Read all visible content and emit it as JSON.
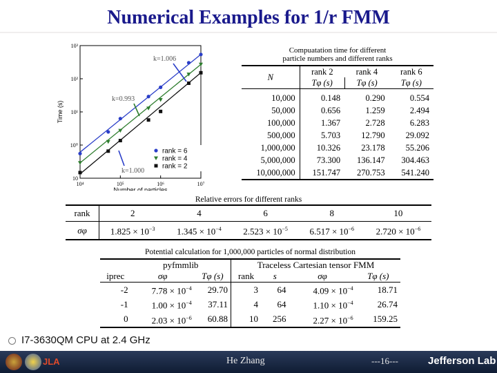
{
  "slide": {
    "title": "Numerical Examples for 1/r FMM",
    "bullet": "I7-3630QM CPU at 2.4 GHz",
    "footer_author": "He Zhang",
    "footer_page": "---16---",
    "footer_logo": "Jefferson Lab",
    "footer_left_logo": "JLA",
    "colors": {
      "title": "#1a1a8c",
      "footer_bg": "#1b2a47",
      "rank6": "#2a3ec8",
      "rank4": "#2e7d2e",
      "rank2": "#111111"
    }
  },
  "chart_data": {
    "type": "scatter",
    "xlabel": "Number of particles",
    "ylabel": "Time (s)",
    "x_scale": "log",
    "y_scale": "log",
    "xlim": [
      10000,
      10000000
    ],
    "ylim": [
      0.1,
      1000
    ],
    "x_ticks": [
      "10⁴",
      "10⁵",
      "10⁶",
      "10⁷"
    ],
    "y_ticks": [
      "10³",
      "10²",
      "10¹",
      "10⁰",
      "10"
    ],
    "legend_position": "bottom-right",
    "annotations": [
      "k=1.006",
      "k=0.993",
      "k=1.000"
    ],
    "series": [
      {
        "name": "rank = 6",
        "color": "#2a3ec8",
        "marker": "circle",
        "x": [
          10000,
          50000,
          100000,
          500000,
          1000000,
          5000000,
          10000000
        ],
        "y": [
          0.554,
          2.494,
          6.283,
          29.092,
          55.206,
          304.463,
          541.24
        ]
      },
      {
        "name": "rank = 4",
        "color": "#2e7d2e",
        "marker": "triangle",
        "x": [
          10000,
          50000,
          100000,
          500000,
          1000000,
          5000000,
          10000000
        ],
        "y": [
          0.29,
          1.259,
          2.728,
          12.79,
          23.178,
          136.147,
          270.753
        ]
      },
      {
        "name": "rank = 2",
        "color": "#111111",
        "marker": "square",
        "x": [
          10000,
          50000,
          100000,
          500000,
          1000000,
          5000000,
          10000000
        ],
        "y": [
          0.148,
          0.656,
          1.367,
          5.703,
          10.326,
          73.3,
          151.747
        ]
      }
    ]
  },
  "table1": {
    "caption_line1": "Compuatation time for different",
    "caption_line2": "particle numbers and different ranks",
    "col_n": "N",
    "col_ranks": [
      "rank 2",
      "rank 4",
      "rank 6"
    ],
    "col_units": [
      "Tφ (s)",
      "Tφ (s)",
      "Tφ (s)"
    ],
    "rows": [
      [
        "10,000",
        "0.148",
        "0.290",
        "0.554"
      ],
      [
        "50,000",
        "0.656",
        "1.259",
        "2.494"
      ],
      [
        "100,000",
        "1.367",
        "2.728",
        "6.283"
      ],
      [
        "500,000",
        "5.703",
        "12.790",
        "29.092"
      ],
      [
        "1,000,000",
        "10.326",
        "23.178",
        "55.206"
      ],
      [
        "5,000,000",
        "73.300",
        "136.147",
        "304.463"
      ],
      [
        "10,000,000",
        "151.747",
        "270.753",
        "541.240"
      ]
    ]
  },
  "table2": {
    "caption": "Relative errors for different ranks",
    "row1_label": "rank",
    "ranks": [
      "2",
      "4",
      "6",
      "8",
      "10"
    ],
    "row2_label": "σφ",
    "errors_mantissa": [
      "1.825 × 10",
      "1.345 × 10",
      "2.523 × 10",
      "6.517 × 10",
      "2.720 × 10"
    ],
    "errors_exp": [
      "−3",
      "−4",
      "−5",
      "−6",
      "−6"
    ]
  },
  "table3": {
    "caption": "Potential calculation for 1,000,000 particles of normal distribution",
    "group1": "pyfmmlib",
    "group2": "Traceless Cartesian tensor FMM",
    "headers": [
      "iprec",
      "σφ",
      "Tφ (s)",
      "rank",
      "s",
      "σφ",
      "Tφ (s)"
    ],
    "rows": [
      {
        "iprec": "-2",
        "sig1": "7.78 × 10",
        "sig1_exp": "−4",
        "t1": "29.70",
        "rank": "3",
        "s": "64",
        "sig2": "4.09 × 10",
        "sig2_exp": "−4",
        "t2": "18.71"
      },
      {
        "iprec": "-1",
        "sig1": "1.00 × 10",
        "sig1_exp": "−4",
        "t1": "37.11",
        "rank": "4",
        "s": "64",
        "sig2": "1.10 × 10",
        "sig2_exp": "−4",
        "t2": "26.74"
      },
      {
        "iprec": "0",
        "sig1": "2.03 × 10",
        "sig1_exp": "−6",
        "t1": "60.88",
        "rank": "10",
        "s": "256",
        "sig2": "2.27 × 10",
        "sig2_exp": "−6",
        "t2": "159.25"
      }
    ]
  }
}
